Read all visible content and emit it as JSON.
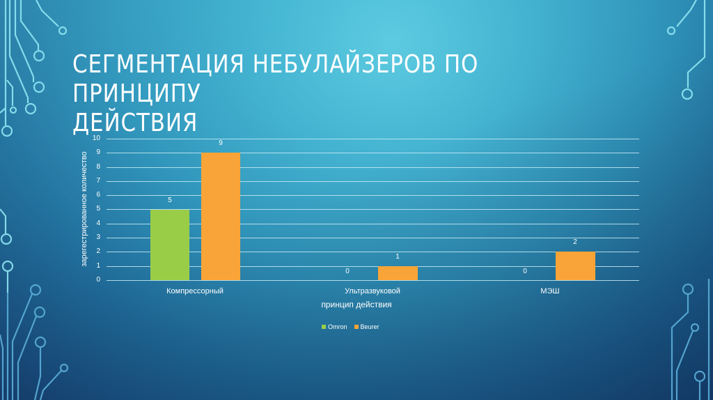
{
  "slide": {
    "title_line1": "СЕГМЕНТАЦИЯ НЕБУЛАЙЗЕРОВ ПО ПРИНЦИПУ",
    "title_line2": "ДЕЙСТВИЯ",
    "background_colors": [
      "#5ecbe0",
      "#2f93b9",
      "#163f6e"
    ],
    "decoration_icon": "circuit-lines-icon"
  },
  "chart_data": {
    "type": "bar",
    "title": "",
    "categories": [
      "Компрессорный",
      "Ультразвуковой",
      "МЭШ"
    ],
    "series": [
      {
        "name": "Omron",
        "color": "#9acd47",
        "values": [
          5,
          0,
          0
        ]
      },
      {
        "name": "Beurer",
        "color": "#f9a438",
        "values": [
          9,
          1,
          2
        ]
      }
    ],
    "xlabel": "принцип действия",
    "ylabel": "зарегестрированное количество",
    "ylim": [
      0,
      10
    ],
    "yticks": [
      "0",
      "1",
      "2",
      "3",
      "4",
      "5",
      "6",
      "7",
      "8",
      "9",
      "10"
    ],
    "grid": true,
    "legend_position": "bottom",
    "data_labels": {
      "omron": [
        "5",
        "0",
        "0"
      ],
      "beurer": [
        "9",
        "1",
        "2"
      ]
    }
  }
}
